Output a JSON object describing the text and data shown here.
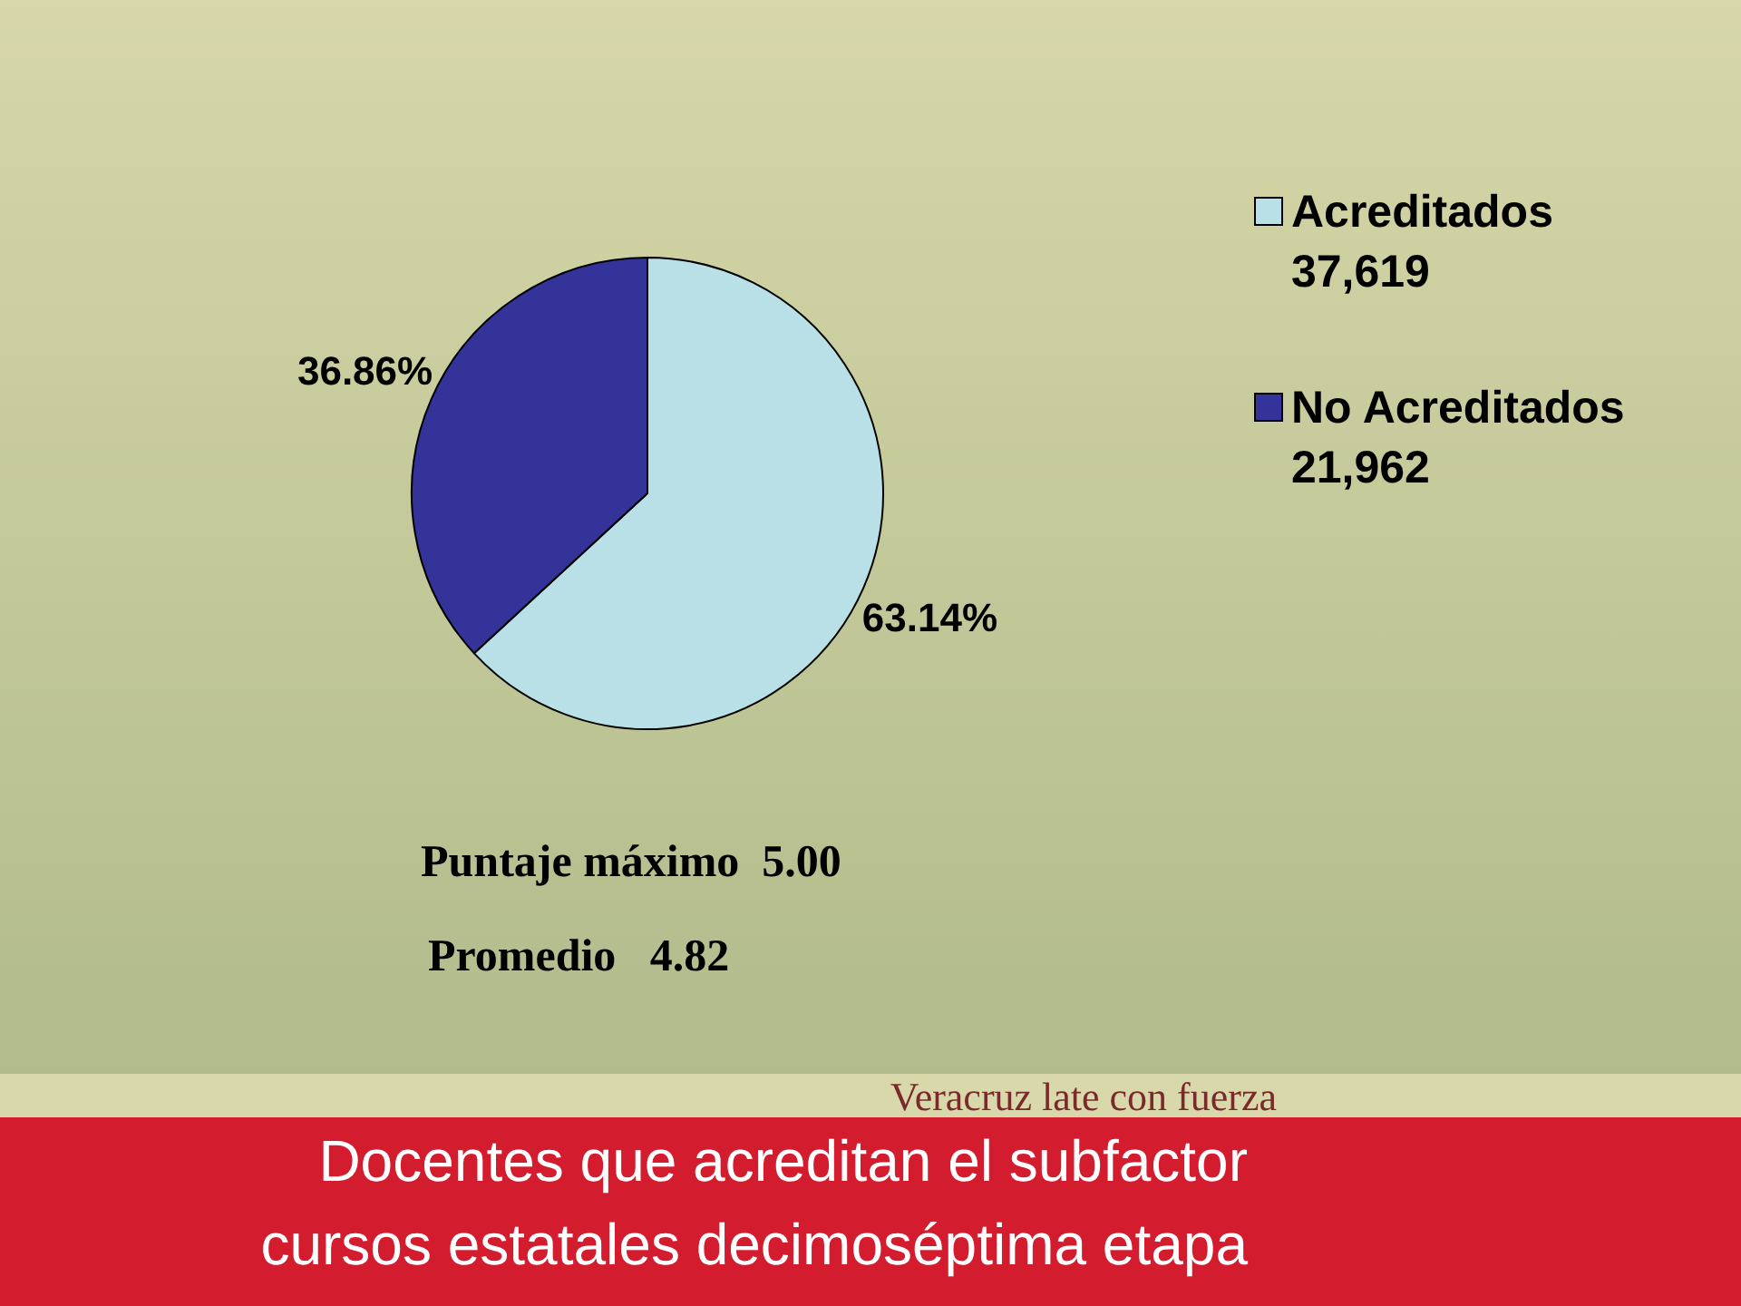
{
  "chart_data": {
    "type": "pie",
    "title": "Docentes que acreditan el subfactor cursos estatales decimoséptima etapa",
    "categories": [
      "Acreditados 37,619",
      "No Acreditados 21,962"
    ],
    "values": [
      63.14,
      36.86
    ],
    "colors": [
      "#b8e0e6",
      "#333399"
    ],
    "value_labels": [
      "63.14%",
      "36.86%"
    ],
    "legend": "right",
    "annotations": [
      "Puntaje máximo  5.00",
      "Promedio   4.82",
      "Veracruz late con fuerza"
    ]
  }
}
